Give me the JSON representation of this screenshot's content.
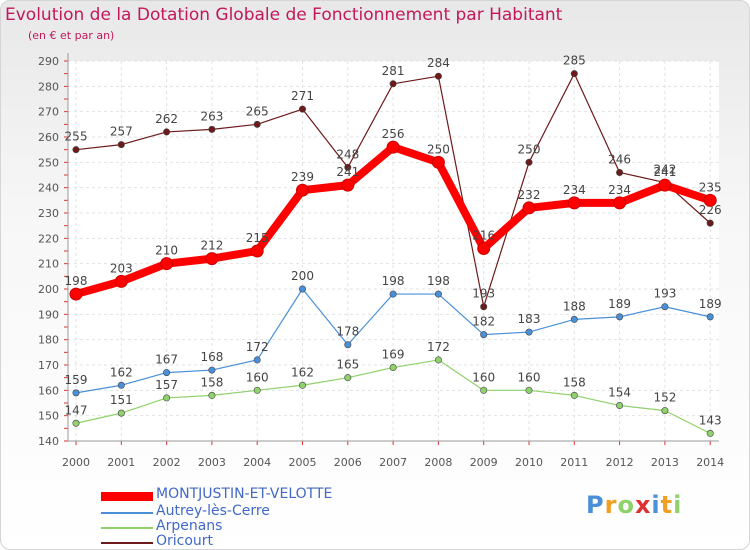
{
  "title": "Evolution de la Dotation Globale de Fonctionnement par Habitant",
  "subtitle": "(en € et par an)",
  "brand": "Proxiti",
  "chart_data": {
    "type": "line",
    "title": "Evolution de la Dotation Globale de Fonctionnement par Habitant",
    "ylabel": "(en € et par an)",
    "xlabel": "",
    "ylim": [
      140,
      290
    ],
    "yticks": [
      140,
      150,
      160,
      170,
      180,
      190,
      200,
      210,
      220,
      230,
      240,
      250,
      260,
      270,
      280,
      290
    ],
    "grid": true,
    "legend_position": "bottom-left",
    "categories": [
      "2000",
      "2001",
      "2002",
      "2003",
      "2004",
      "2005",
      "2006",
      "2007",
      "2008",
      "2009",
      "2010",
      "2011",
      "2012",
      "2013",
      "2014"
    ],
    "series": [
      {
        "name": "Oricourt",
        "color": "#6e1a1a",
        "values": [
          255,
          257,
          262,
          263,
          265,
          271,
          248,
          281,
          284,
          193,
          250,
          285,
          246,
          242,
          226
        ]
      },
      {
        "name": "Arpenans",
        "color": "#8fd16a",
        "values": [
          147,
          151,
          157,
          158,
          160,
          162,
          165,
          169,
          172,
          160,
          160,
          158,
          154,
          152,
          143
        ]
      },
      {
        "name": "Autrey-lès-Cerre",
        "color": "#4a90d9",
        "values": [
          159,
          162,
          167,
          168,
          172,
          200,
          178,
          198,
          198,
          182,
          183,
          188,
          189,
          193,
          189
        ]
      },
      {
        "name": "MONTJUSTIN-ET-VELOTTE",
        "color": "#ff0000",
        "values": [
          198,
          203,
          210,
          212,
          215,
          239,
          241,
          256,
          250,
          216,
          232,
          234,
          234,
          241,
          235
        ]
      }
    ]
  },
  "legend": [
    {
      "label": "MONTJUSTIN-ET-VELOTTE",
      "color": "#ff0000",
      "weight": "thick"
    },
    {
      "label": "Autrey-lès-Cerre",
      "color": "#4a90d9",
      "weight": "thin"
    },
    {
      "label": "Arpenans",
      "color": "#8fd16a",
      "weight": "thin"
    },
    {
      "label": "Oricourt",
      "color": "#6e1a1a",
      "weight": "thin"
    }
  ]
}
